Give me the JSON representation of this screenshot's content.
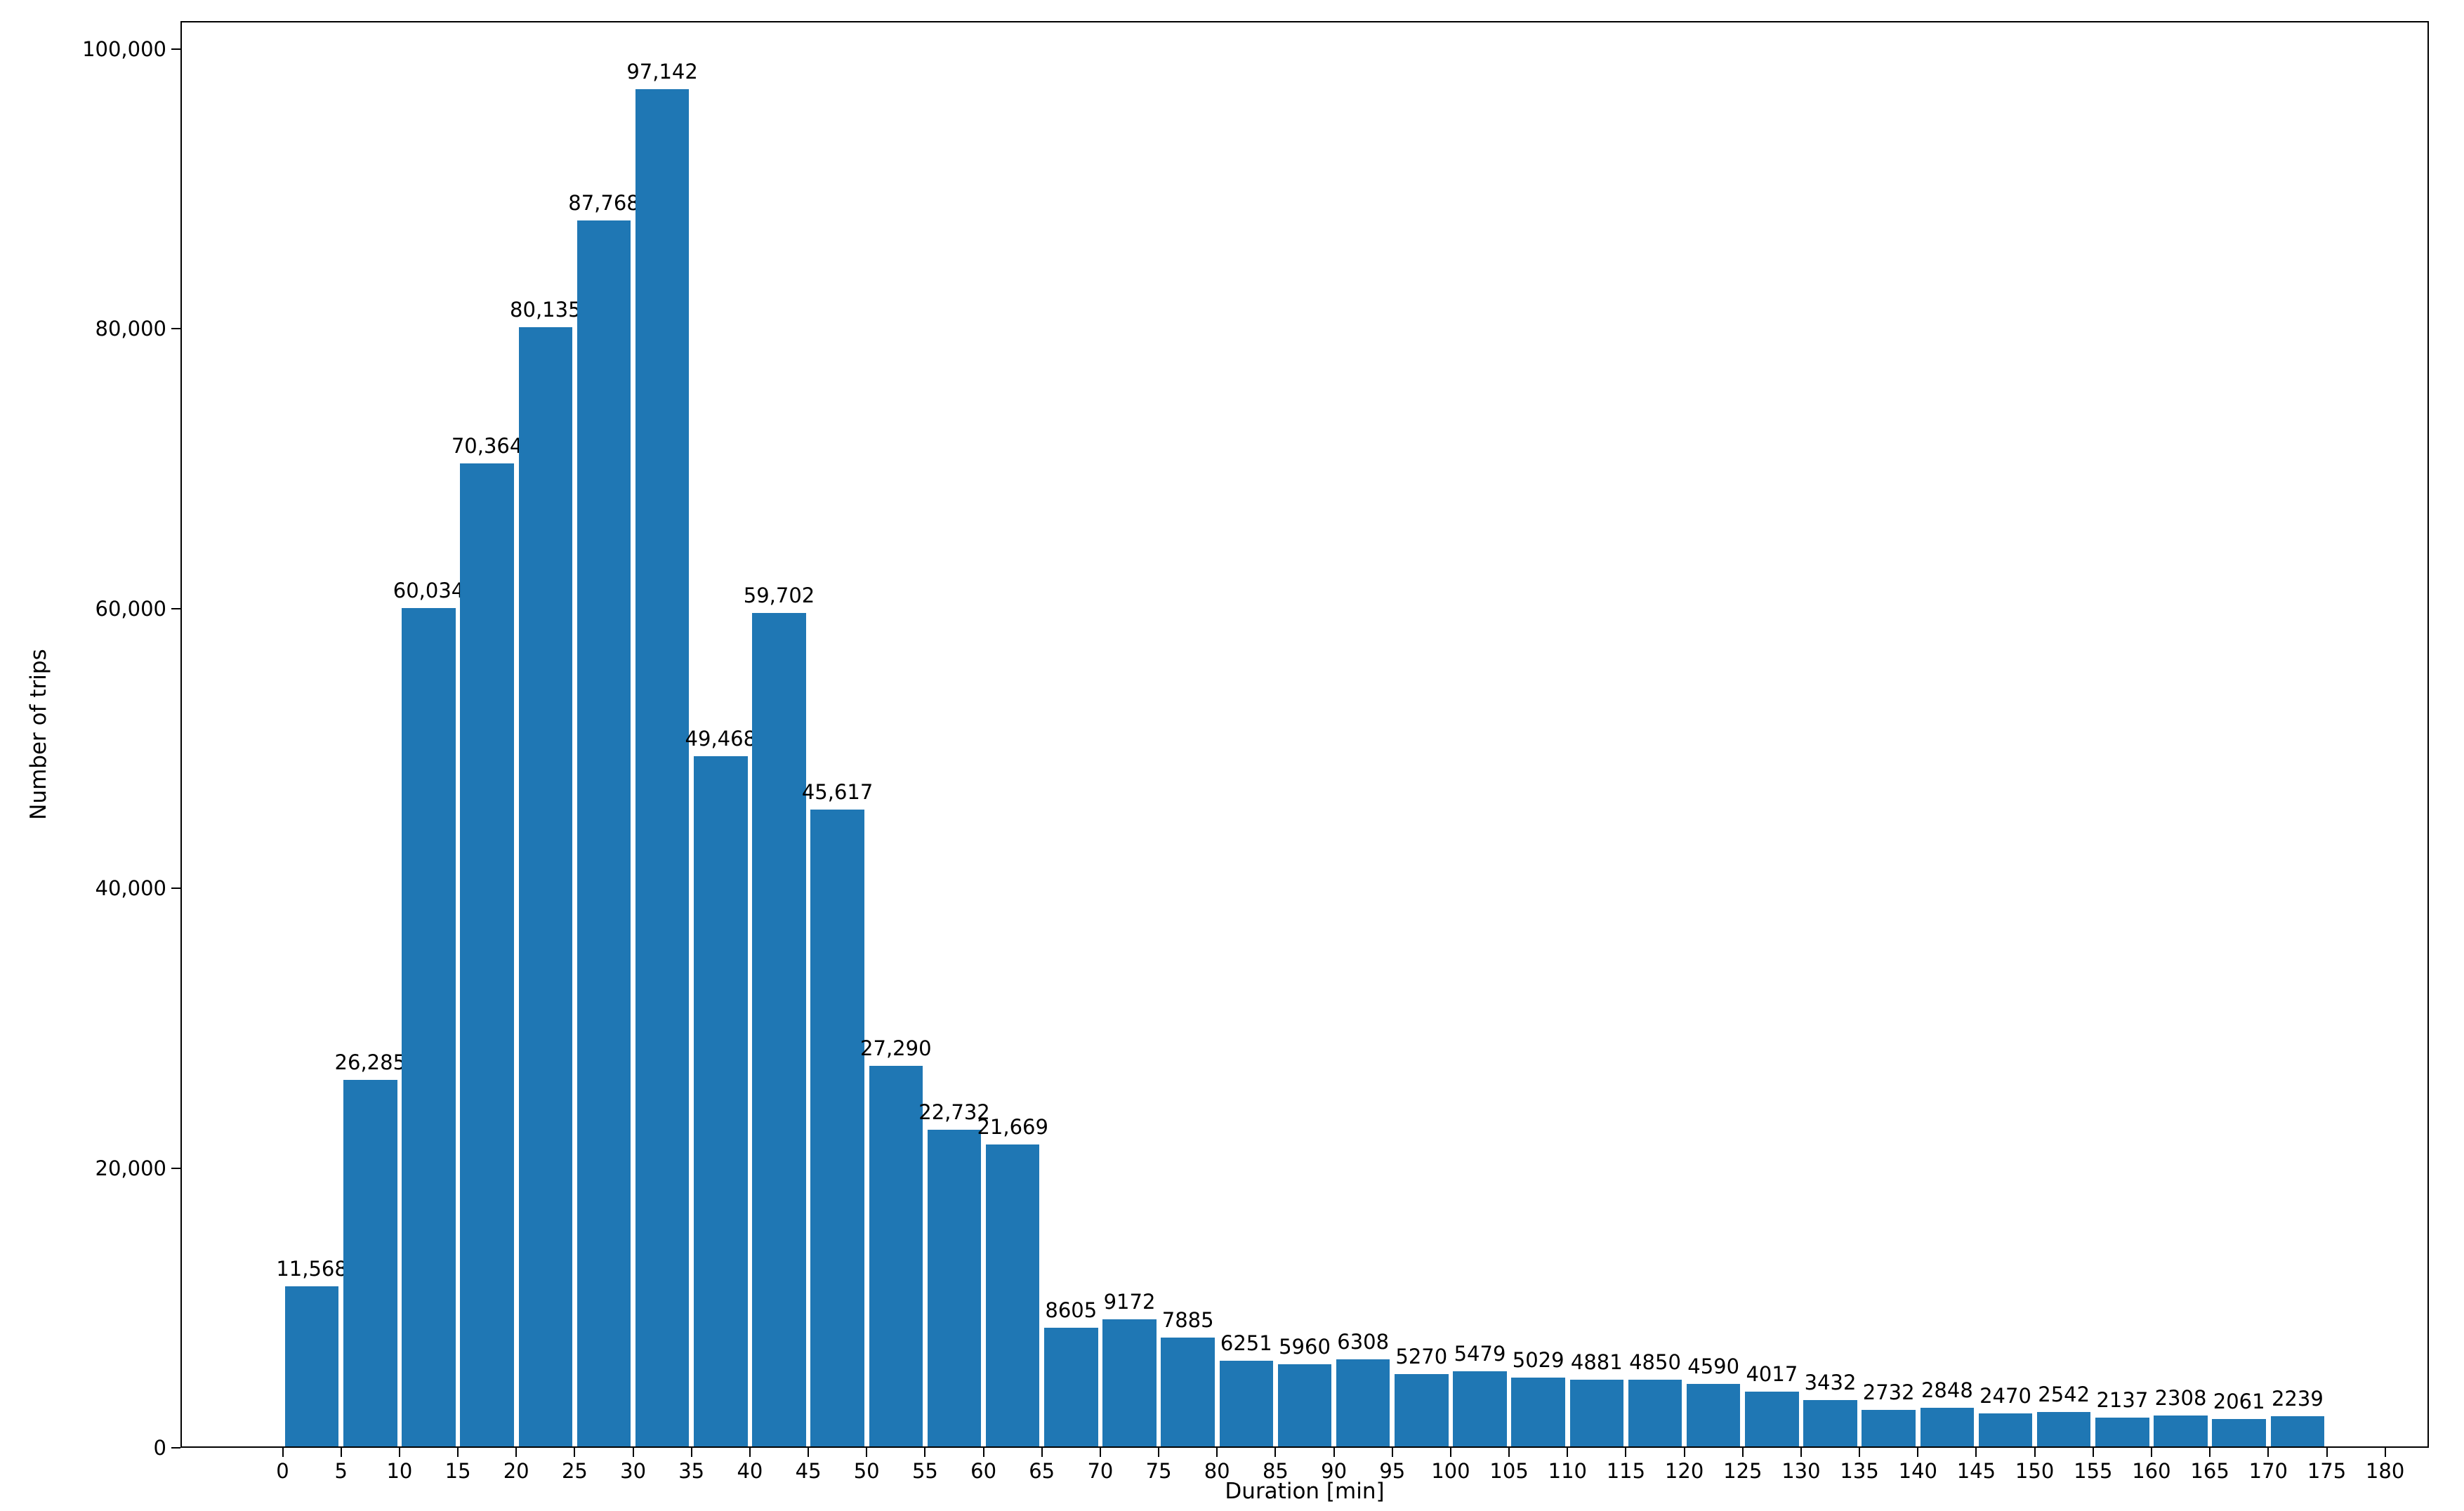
{
  "chart_data": {
    "type": "bar",
    "title": "",
    "xlabel": "Duration [min]",
    "ylabel": "Number of trips",
    "legend": "none",
    "grid": false,
    "bar_color": "#1f77b4",
    "bin_width": 5,
    "bar_visual_width": 4.6,
    "x_bin_starts": [
      0,
      5,
      10,
      15,
      20,
      25,
      30,
      35,
      40,
      45,
      50,
      55,
      60,
      65,
      70,
      75,
      80,
      85,
      90,
      95,
      100,
      105,
      110,
      115,
      120,
      125,
      130,
      135,
      140,
      145,
      150,
      155,
      160,
      165,
      170
    ],
    "values": [
      11568,
      26285,
      60034,
      70364,
      80135,
      87768,
      97142,
      49468,
      59702,
      45617,
      27290,
      22732,
      21669,
      8605,
      9172,
      7885,
      6251,
      5960,
      6308,
      5270,
      5479,
      5029,
      4881,
      4850,
      4590,
      4017,
      3432,
      2732,
      2848,
      2470,
      2542,
      2137,
      2308,
      2061,
      2239
    ],
    "bar_labels": [
      "11,568",
      "26,285",
      "60,034",
      "70,364",
      "80,135",
      "87,768",
      "97,142",
      "49,468",
      "59,702",
      "45,617",
      "27,290",
      "22,732",
      "21,669",
      "8605",
      "9172",
      "7885",
      "6251",
      "5960",
      "6308",
      "5270",
      "5479",
      "5029",
      "4881",
      "4850",
      "4590",
      "4017",
      "3432",
      "2732",
      "2848",
      "2470",
      "2542",
      "2137",
      "2308",
      "2061",
      "2239"
    ],
    "x_ticks": [
      0,
      5,
      10,
      15,
      20,
      25,
      30,
      35,
      40,
      45,
      50,
      55,
      60,
      65,
      70,
      75,
      80,
      85,
      90,
      95,
      100,
      105,
      110,
      115,
      120,
      125,
      130,
      135,
      140,
      145,
      150,
      155,
      160,
      165,
      170,
      175,
      180
    ],
    "y_ticks": [
      0,
      20000,
      40000,
      60000,
      80000,
      100000
    ],
    "y_tick_labels": [
      "0",
      "20,000",
      "40,000",
      "60,000",
      "80,000",
      "100,000"
    ],
    "xlim": [
      -8.75,
      183.75
    ],
    "ylim": [
      0,
      102000
    ]
  }
}
